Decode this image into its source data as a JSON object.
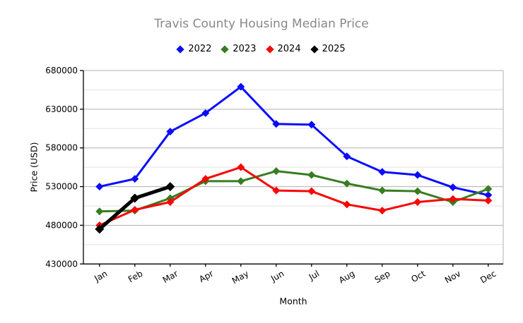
{
  "chart_data": {
    "type": "line",
    "title": "Travis County Housing Median Price",
    "xlabel": "Month",
    "ylabel": "Price (USD)",
    "categories": [
      "Jan",
      "Feb",
      "Mar",
      "Apr",
      "May",
      "Jun",
      "Jul",
      "Aug",
      "Sep",
      "Oct",
      "Nov",
      "Dec"
    ],
    "series": [
      {
        "name": "2022",
        "color": "#0b0bff",
        "line_width": 3,
        "values": [
          530000,
          540000,
          601000,
          625000,
          659000,
          611000,
          610000,
          569000,
          549000,
          545000,
          529000,
          519000
        ]
      },
      {
        "name": "2023",
        "color": "#377d22",
        "line_width": 3,
        "values": [
          498000,
          499000,
          515000,
          537000,
          537000,
          550000,
          545000,
          534000,
          525000,
          524000,
          510000,
          527000
        ]
      },
      {
        "name": "2024",
        "color": "#f80505",
        "line_width": 3,
        "values": [
          480000,
          500000,
          510000,
          540000,
          555000,
          525000,
          524000,
          507000,
          499000,
          510000,
          514000,
          512000
        ]
      },
      {
        "name": "2025",
        "color": "#000000",
        "line_width": 5,
        "values": [
          475000,
          515000,
          530000
        ]
      }
    ],
    "ylim": [
      430000,
      680000
    ],
    "y_major_step": 50000,
    "y_minor_step": 25000,
    "y_tick_labels": [
      "430000",
      "480000",
      "530000",
      "580000",
      "630000",
      "680000"
    ],
    "marker": "diamond",
    "grid": "horizontal major and minor",
    "legend_position": "top-center",
    "style": {
      "title_color": "#888888",
      "axis_color": "#000000",
      "grid_major_color": "#b0b0b0",
      "grid_minor_color": "#e3e3e3",
      "background": "#ffffff"
    }
  }
}
